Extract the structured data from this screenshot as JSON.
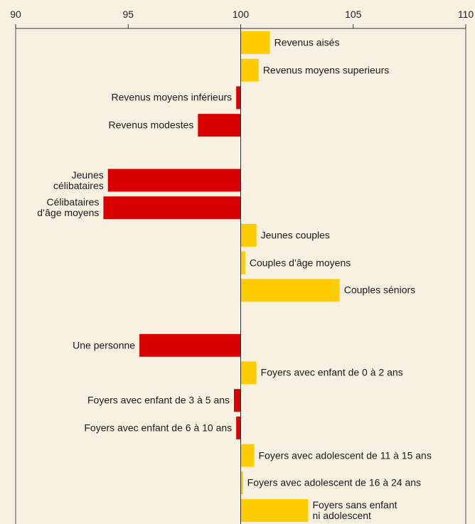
{
  "chart_data": {
    "type": "bar",
    "orientation": "horizontal",
    "categories": [
      "Revenus aisés",
      "Revenus moyens superieurs",
      "Revenus moyens inférieurs",
      "Revenus modestes",
      null,
      "Jeunes\ncélibataires",
      "Célibataires\nd’âge moyens",
      "Jeunes couples",
      "Couples d’âge moyens",
      "Couples séniors",
      null,
      "Une personne",
      "Foyers avec enfant de 0 à 2 ans",
      "Foyers avec enfant de 3 à 5 ans",
      "Foyers avec enfant de 6 à 10 ans",
      "Foyers avec adolescent de 11 à 15 ans",
      "Foyers avec adolescent de 16 à 24 ans",
      "Foyers sans enfant\nni adolescent"
    ],
    "values": [
      101.3,
      100.8,
      99.8,
      98.1,
      null,
      94.1,
      93.9,
      100.7,
      100.2,
      104.4,
      null,
      95.5,
      100.7,
      99.7,
      99.8,
      100.6,
      100.1,
      103.0
    ],
    "baseline": 100,
    "positive_color": "#ffcc00",
    "negative_color": "#d90000",
    "xlim": [
      90,
      110
    ],
    "xticks": [
      90,
      95,
      100,
      105,
      110
    ]
  }
}
